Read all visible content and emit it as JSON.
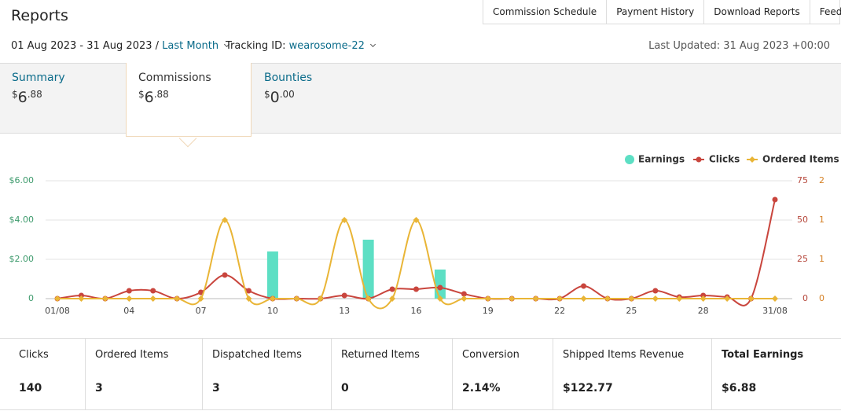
{
  "header": {
    "title": "Reports",
    "buttons": [
      "Commission Schedule",
      "Payment History",
      "Download Reports",
      "Feedback"
    ]
  },
  "filters": {
    "date_range": "01 Aug 2023 - 31 Aug 2023 /",
    "period": "Last Month",
    "tracking_label": "Tracking ID:",
    "tracking_id": "wearosome-22",
    "last_updated": "Last Updated: 31 Aug 2023 +00:00"
  },
  "tabs": [
    {
      "label": "Summary",
      "amount": {
        "currency": "$",
        "whole": "6",
        "fraction": ".88"
      }
    },
    {
      "label": "Commissions",
      "amount": {
        "currency": "$",
        "whole": "6",
        "fraction": ".88"
      }
    },
    {
      "label": "Bounties",
      "amount": {
        "currency": "$",
        "whole": "0",
        "fraction": ".00"
      }
    }
  ],
  "chart_data": {
    "type": "combo",
    "categories": [
      "01/08",
      null,
      null,
      "04",
      null,
      null,
      "07",
      null,
      null,
      "10",
      null,
      null,
      "13",
      null,
      null,
      "16",
      null,
      null,
      "19",
      null,
      null,
      "22",
      null,
      null,
      "25",
      null,
      null,
      "28",
      null,
      null,
      "31/08"
    ],
    "ylim": [
      0,
      6
    ],
    "yticks": [
      {
        "value": 0,
        "label": "0"
      },
      {
        "value": 2,
        "label": "$2.00"
      },
      {
        "value": 4,
        "label": "$4.00"
      },
      {
        "value": 6,
        "label": "$6.00"
      }
    ],
    "y2lim": [
      0,
      75
    ],
    "y2ticks": [
      0,
      25,
      50,
      75
    ],
    "y3lim": [
      0,
      1.5
    ],
    "y3ticks": [
      {
        "value": 0,
        "label": "0"
      },
      {
        "value": 0.5,
        "label": "1"
      },
      {
        "value": 1,
        "label": "1"
      },
      {
        "value": 1.5,
        "label": "2"
      }
    ],
    "grid": true,
    "series": [
      {
        "name": "Earnings",
        "type": "bar",
        "color": "#5ddfc4",
        "values": [
          0,
          0,
          0,
          0,
          0,
          0,
          0,
          0,
          0,
          2.4,
          0,
          0,
          0,
          3.0,
          0,
          0,
          1.48,
          0,
          0,
          0,
          0,
          0,
          0,
          0,
          0,
          0,
          0,
          0,
          0,
          0,
          0
        ]
      },
      {
        "name": "Clicks",
        "type": "line",
        "axis": "y2",
        "color": "#c9453d",
        "values": [
          0,
          2,
          0,
          5,
          5,
          0,
          4,
          15,
          5,
          0,
          0,
          0,
          2,
          0,
          6,
          6,
          7,
          3,
          0,
          0,
          0,
          0,
          8,
          0,
          0,
          5,
          1,
          2,
          1,
          0,
          63
        ]
      },
      {
        "name": "Ordered Items",
        "type": "line",
        "axis": "y3",
        "color": "#e9b536",
        "values": [
          0,
          0,
          0,
          0,
          0,
          0,
          0,
          1,
          0,
          0,
          0,
          0,
          1,
          0,
          0,
          1,
          0,
          0,
          0,
          0,
          0,
          0,
          0,
          0,
          0,
          0,
          0,
          0,
          0,
          0,
          0
        ]
      }
    ]
  },
  "summary": [
    {
      "label": "Clicks",
      "value": "140"
    },
    {
      "label": "Ordered Items",
      "value": "3"
    },
    {
      "label": "Dispatched Items",
      "value": "3"
    },
    {
      "label": "Returned Items",
      "value": "0"
    },
    {
      "label": "Conversion",
      "value": "2.14%"
    },
    {
      "label": "Shipped Items Revenue",
      "value": "$122.77"
    },
    {
      "label": "Total Earnings",
      "value": "$6.88"
    }
  ]
}
